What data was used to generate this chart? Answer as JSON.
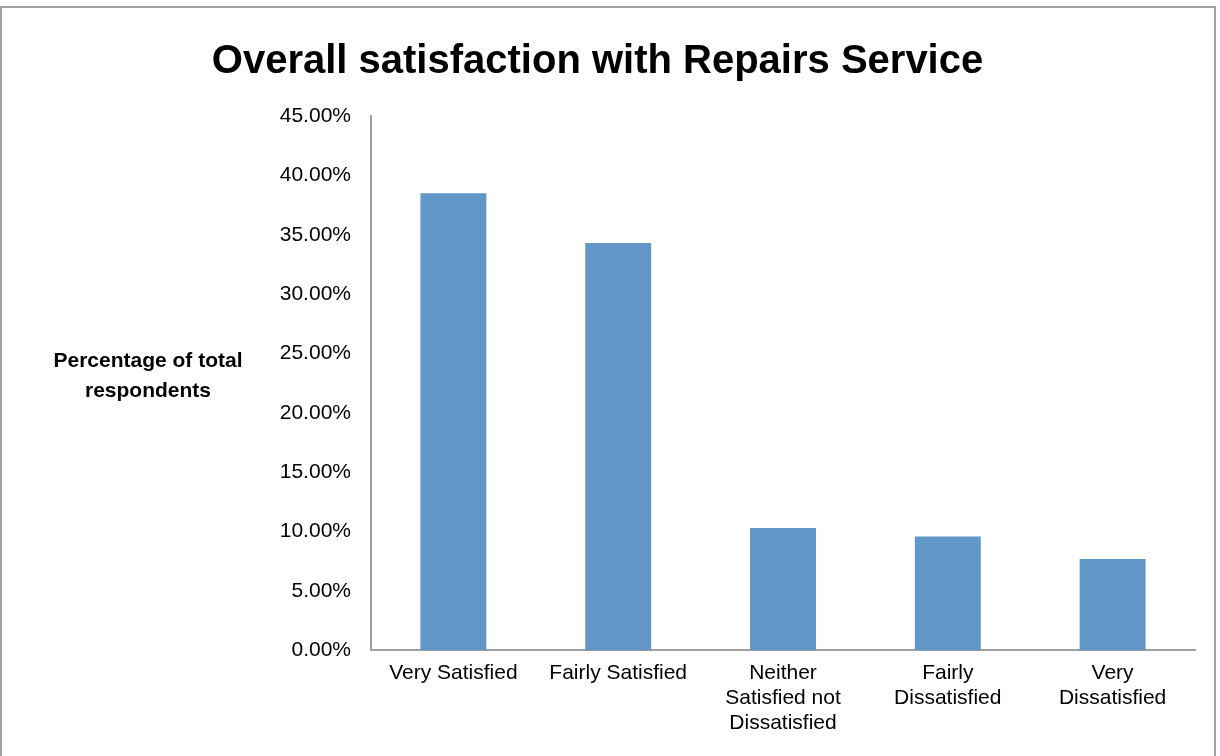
{
  "chart_data": {
    "type": "bar",
    "title": "Overall satisfaction with Repairs Service",
    "ylabel": "Percentage of total respondents",
    "categories": [
      [
        "Very Satisfied"
      ],
      [
        "Fairly Satisfied"
      ],
      [
        "Neither",
        "Satisfied not",
        "Dissatisfied"
      ],
      [
        "Fairly",
        "Dissatisfied"
      ],
      [
        "Very",
        "Dissatisfied"
      ]
    ],
    "values": [
      38.5,
      34.3,
      10.3,
      9.6,
      7.7
    ],
    "color": "#6096c8",
    "ylim": [
      0,
      45
    ],
    "yticks": [
      {
        "value": 0,
        "label": "0.00%"
      },
      {
        "value": 5,
        "label": "5.00%"
      },
      {
        "value": 10,
        "label": "10.00%"
      },
      {
        "value": 15,
        "label": "15.00%"
      },
      {
        "value": 20,
        "label": "20.00%"
      },
      {
        "value": 25,
        "label": "25.00%"
      },
      {
        "value": 30,
        "label": "30.00%"
      },
      {
        "value": 35,
        "label": "35.00%"
      },
      {
        "value": 40,
        "label": "40.00%"
      },
      {
        "value": 45,
        "label": "45.00%"
      }
    ],
    "grid": false,
    "legend": false
  }
}
